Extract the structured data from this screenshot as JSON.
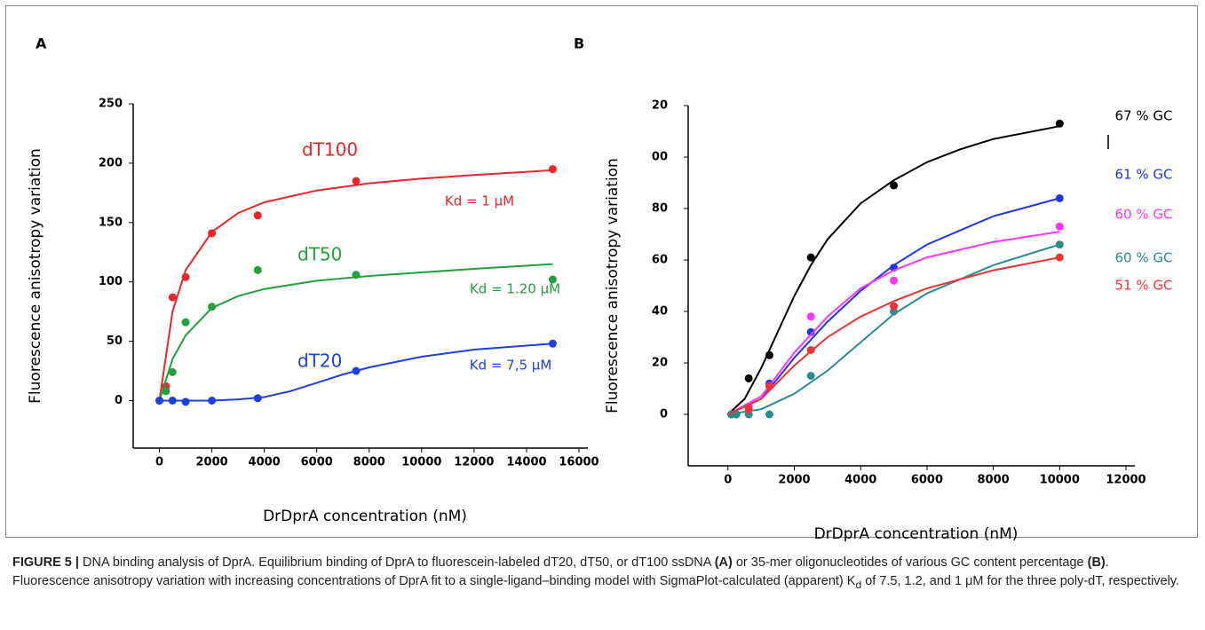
{
  "panels": [
    "A",
    "B"
  ],
  "chart_data": [
    {
      "type": "scatter-fit",
      "ylabel": "Fluorescence anisotropy variation",
      "xlabel": "DrDprA concentration (nM)",
      "xlim": [
        -1000,
        16000
      ],
      "xticks": [
        0,
        2000,
        4000,
        6000,
        8000,
        10000,
        12000,
        14000,
        16000
      ],
      "ylim": [
        -40,
        250
      ],
      "yticks": [
        0,
        50,
        100,
        150,
        200,
        250
      ],
      "series": [
        {
          "name": "dT100",
          "color": "#e8262a",
          "x": [
            0,
            250,
            500,
            1000,
            2000,
            3750,
            7500,
            15000
          ],
          "values": [
            0,
            12,
            87,
            104,
            141,
            156,
            185,
            195
          ],
          "fit_x": [
            0,
            500,
            1000,
            2000,
            3000,
            4000,
            6000,
            8000,
            10000,
            12000,
            15000
          ],
          "fit_values": [
            0,
            75,
            110,
            142,
            158,
            167,
            177,
            183,
            187,
            190,
            194
          ]
        },
        {
          "name": "dT50",
          "color": "#22a03c",
          "x": [
            250,
            500,
            1000,
            2000,
            3750,
            7500,
            15000
          ],
          "values": [
            8,
            24,
            66,
            79,
            110,
            106,
            102
          ],
          "fit_x": [
            0,
            500,
            1000,
            2000,
            3000,
            4000,
            6000,
            8000,
            10000,
            12000,
            15000
          ],
          "fit_values": [
            0,
            35,
            55,
            78,
            88,
            94,
            101,
            105,
            108,
            111,
            115
          ]
        },
        {
          "name": "dT20",
          "color": "#1f3fe0",
          "x": [
            0,
            500,
            1000,
            2000,
            3750,
            7500,
            15000
          ],
          "values": [
            0,
            0,
            -1,
            0,
            2,
            25,
            48
          ],
          "fit_x": [
            0,
            1000,
            2000,
            3000,
            4000,
            5000,
            6000,
            7000,
            8000,
            10000,
            12000,
            15000
          ],
          "fit_values": [
            0,
            0,
            0,
            1,
            3,
            8,
            15,
            22,
            28,
            37,
            43,
            48
          ]
        }
      ],
      "annotations": [
        {
          "text": "Kd = 1 µM",
          "color": "#e8262a"
        },
        {
          "text": "Kd = 1.20 µM",
          "color": "#22a03c"
        },
        {
          "text": "Kd = 7,5 µM",
          "color": "#1f3fe0"
        }
      ]
    },
    {
      "type": "scatter-fit",
      "ylabel": "Fluorescence anisotropy variation",
      "xlabel": "DrDprA concentration (nM)",
      "xlim": [
        -1200,
        12000
      ],
      "xticks": [
        0,
        2000,
        4000,
        6000,
        8000,
        10000,
        12000
      ],
      "ylim": [
        -20,
        120
      ],
      "yticks": [
        0,
        20,
        40,
        60,
        80,
        {
          "value": 100,
          "label": "00"
        },
        {
          "value": 120,
          "label": "20"
        }
      ],
      "series": [
        {
          "name": "67 % GC",
          "color": "#000000",
          "x": [
            100,
            250,
            625,
            1250,
            2500,
            5000,
            10000
          ],
          "values": [
            0,
            0,
            14,
            23,
            61,
            89,
            113
          ],
          "fit_x": [
            0,
            500,
            1000,
            1500,
            2000,
            2500,
            3000,
            4000,
            5000,
            6000,
            7000,
            8000,
            10000
          ],
          "fit_values": [
            0,
            6,
            18,
            32,
            46,
            58,
            68,
            82,
            91,
            98,
            103,
            107,
            112
          ]
        },
        {
          "name": "61 % GC",
          "color": "#2233ee",
          "x": [
            100,
            250,
            625,
            1250,
            2500,
            5000,
            10000
          ],
          "values": [
            0,
            0,
            3,
            12,
            32,
            57,
            84
          ],
          "fit_x": [
            0,
            1000,
            2000,
            3000,
            4000,
            5000,
            6000,
            8000,
            10000
          ],
          "fit_values": [
            0,
            6,
            22,
            36,
            48,
            58,
            66,
            77,
            84
          ]
        },
        {
          "name": "60 % GC",
          "color": "#ff33ff",
          "x": [
            625,
            1250,
            2500,
            5000,
            10000
          ],
          "values": [
            3,
            11,
            38,
            52,
            73
          ],
          "fit_x": [
            0,
            1000,
            2000,
            3000,
            4000,
            5000,
            6000,
            8000,
            10000
          ],
          "fit_values": [
            0,
            7,
            24,
            38,
            49,
            56,
            61,
            67,
            71
          ]
        },
        {
          "name": "60 % GC",
          "color": "#2a8c8c",
          "x": [
            100,
            250,
            625,
            1250,
            2500,
            5000,
            10000
          ],
          "values": [
            0,
            0,
            0,
            0,
            15,
            40,
            66
          ],
          "fit_x": [
            0,
            1000,
            2000,
            3000,
            4000,
            5000,
            6000,
            8000,
            10000
          ],
          "fit_values": [
            0,
            2,
            8,
            17,
            28,
            39,
            47,
            58,
            66
          ]
        },
        {
          "name": "51 % GC",
          "color": "#ee3333",
          "x": [
            625,
            1250,
            2500,
            5000,
            10000
          ],
          "values": [
            2,
            11,
            25,
            42,
            61
          ],
          "fit_x": [
            0,
            1000,
            2000,
            3000,
            4000,
            5000,
            6000,
            8000,
            10000
          ],
          "fit_values": [
            0,
            6,
            19,
            30,
            38,
            44,
            49,
            56,
            61
          ]
        }
      ]
    }
  ],
  "caption": {
    "label": "FIGURE 5 |",
    "text1": " DNA binding analysis of DprA. Equilibrium binding of DprA to fluorescein-labeled dT20, dT50, or dT100 ssDNA ",
    "bold1": "(A)",
    "text2": " or 35-mer oligonucleotides of various GC content percentage ",
    "bold2": "(B)",
    "text3": ". Fluorescence anisotropy variation with increasing concentrations of DprA fit to a single-ligand–binding model with SigmaPlot-calculated (apparent) K",
    "sub": "d",
    "text4": " of 7.5, 1.2, and 1 μM for the three poly-dT, respectively."
  }
}
